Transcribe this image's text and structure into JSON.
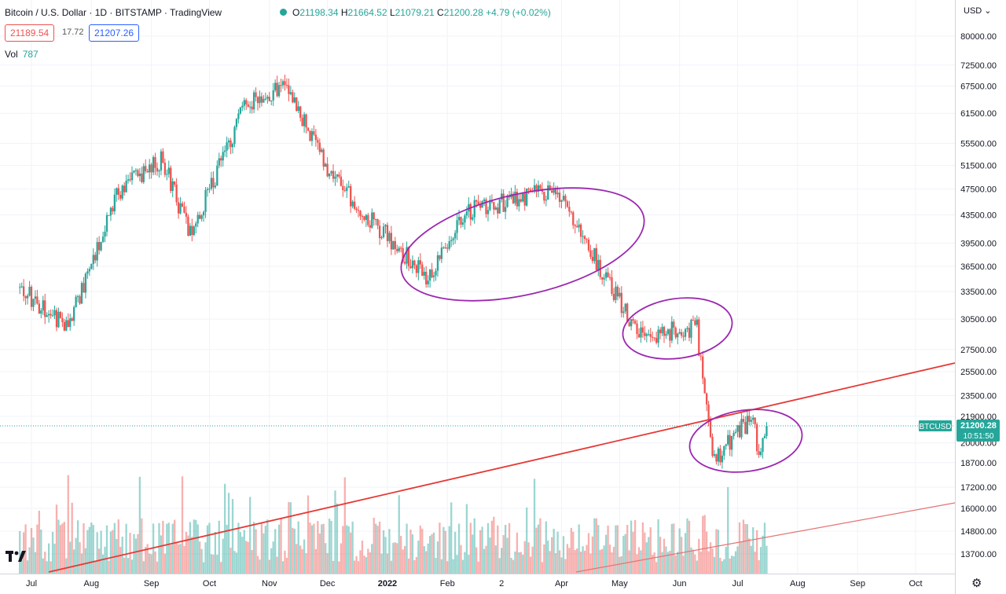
{
  "header": {
    "title": "Bitcoin / U.S. Dollar · 1D · BITSTAMP · TradingView",
    "open_label": "O",
    "open": "21198.34",
    "high_label": "H",
    "high": "21664.52",
    "low_label": "L",
    "low": "21079.21",
    "close_label": "C",
    "close": "21200.28",
    "change": "+4.79 (+0.02%)",
    "bid": "21189.54",
    "spread": "17.72",
    "ask": "21207.26",
    "vol_label": "Vol",
    "vol_value": "787",
    "currency": "USD"
  },
  "price_tag": {
    "symbol": "BTCUSD",
    "price": "21200.28",
    "countdown": "10:51:50"
  },
  "colors": {
    "up": "#26a69a",
    "down": "#ef5350",
    "trendline": "#e53935",
    "ellipse": "#9c27b0",
    "grid": "#f0f3fa"
  },
  "icons": [
    "tradingview-logo-icon",
    "settings-gear-icon",
    "chevron-down-icon"
  ],
  "chart_data": {
    "type": "candlestick",
    "scale": "log",
    "y_ticks": [
      13700,
      14800,
      16000,
      17200,
      18700,
      20000,
      21900,
      23500,
      25500,
      27500,
      30500,
      33500,
      36500,
      39500,
      43500,
      47500,
      51500,
      55500,
      61500,
      67500,
      72500,
      80000
    ],
    "x_ticks": [
      "Jul",
      "Aug",
      "Sep",
      "Oct",
      "Nov",
      "Dec",
      "2022",
      "Feb",
      "2",
      "Apr",
      "May",
      "Jun",
      "Jul",
      "Aug",
      "Sep",
      "Oct"
    ],
    "grid": true,
    "current_price": 21200.28,
    "key_points": [
      {
        "date": "2021-06-24",
        "close": 34000
      },
      {
        "date": "2021-07-20",
        "close": 29800
      },
      {
        "date": "2021-08-14",
        "close": 47000
      },
      {
        "date": "2021-09-07",
        "close": 52500
      },
      {
        "date": "2021-09-21",
        "close": 40500
      },
      {
        "date": "2021-10-20",
        "close": 64000
      },
      {
        "date": "2021-11-10",
        "close": 68000
      },
      {
        "date": "2021-12-04",
        "close": 49000
      },
      {
        "date": "2022-01-22",
        "close": 35000
      },
      {
        "date": "2022-02-10",
        "close": 44000
      },
      {
        "date": "2022-03-28",
        "close": 47500
      },
      {
        "date": "2022-05-11",
        "close": 29000
      },
      {
        "date": "2022-06-10",
        "close": 29500
      },
      {
        "date": "2022-06-18",
        "close": 18800
      },
      {
        "date": "2022-07-08",
        "close": 21800
      },
      {
        "date": "2022-07-12",
        "close": 19500
      },
      {
        "date": "2022-07-16",
        "close": 21200
      }
    ]
  }
}
